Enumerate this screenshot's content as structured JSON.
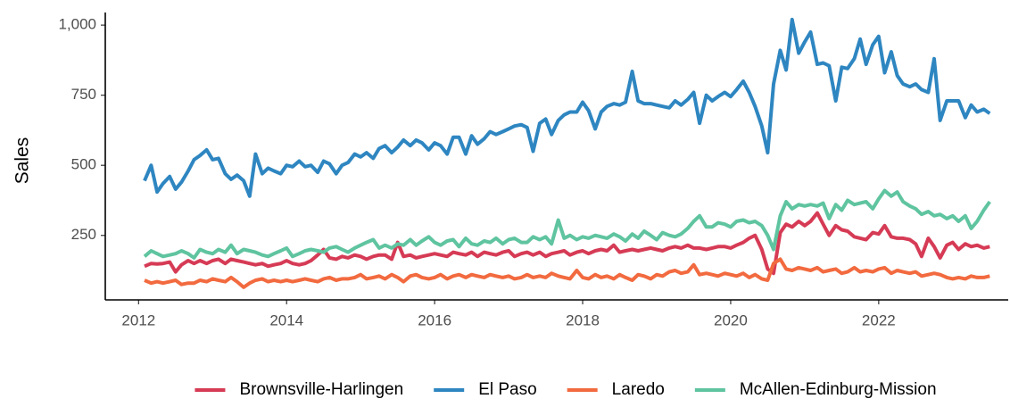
{
  "chart_data": {
    "type": "line",
    "y_label": "Sales",
    "x": [
      2012.08,
      2012.17,
      2012.25,
      2012.33,
      2012.42,
      2012.5,
      2012.58,
      2012.67,
      2012.75,
      2012.83,
      2012.92,
      2013.0,
      2013.08,
      2013.17,
      2013.25,
      2013.33,
      2013.42,
      2013.5,
      2013.58,
      2013.67,
      2013.75,
      2013.83,
      2013.92,
      2014.0,
      2014.08,
      2014.17,
      2014.25,
      2014.33,
      2014.42,
      2014.5,
      2014.58,
      2014.67,
      2014.75,
      2014.83,
      2014.92,
      2015.0,
      2015.08,
      2015.17,
      2015.25,
      2015.33,
      2015.42,
      2015.5,
      2015.58,
      2015.67,
      2015.75,
      2015.83,
      2015.92,
      2016.0,
      2016.08,
      2016.17,
      2016.25,
      2016.33,
      2016.42,
      2016.5,
      2016.58,
      2016.67,
      2016.75,
      2016.83,
      2016.92,
      2017.0,
      2017.08,
      2017.17,
      2017.25,
      2017.33,
      2017.42,
      2017.5,
      2017.58,
      2017.67,
      2017.75,
      2017.83,
      2017.92,
      2018.0,
      2018.08,
      2018.17,
      2018.25,
      2018.33,
      2018.42,
      2018.5,
      2018.58,
      2018.67,
      2018.75,
      2018.83,
      2018.92,
      2019.0,
      2019.08,
      2019.17,
      2019.25,
      2019.33,
      2019.42,
      2019.5,
      2019.58,
      2019.67,
      2019.75,
      2019.83,
      2019.92,
      2020.0,
      2020.08,
      2020.17,
      2020.25,
      2020.33,
      2020.42,
      2020.5,
      2020.58,
      2020.67,
      2020.75,
      2020.83,
      2020.92,
      2021.0,
      2021.08,
      2021.17,
      2021.25,
      2021.33,
      2021.42,
      2021.5,
      2021.58,
      2021.67,
      2021.75,
      2021.83,
      2021.92,
      2022.0,
      2022.08,
      2022.17,
      2022.25,
      2022.33,
      2022.42,
      2022.5,
      2022.58,
      2022.67,
      2022.75,
      2022.83,
      2022.92,
      2023.0,
      2023.08,
      2023.17,
      2023.25,
      2023.33,
      2023.42,
      2023.5
    ],
    "series": [
      {
        "name": "Brownsville-Harlingen",
        "color": "#d63b55",
        "values": [
          140,
          150,
          148,
          150,
          155,
          120,
          145,
          160,
          150,
          160,
          150,
          160,
          165,
          150,
          165,
          160,
          155,
          150,
          145,
          150,
          140,
          145,
          150,
          160,
          150,
          145,
          150,
          160,
          180,
          200,
          170,
          165,
          175,
          170,
          180,
          175,
          165,
          175,
          180,
          180,
          165,
          225,
          175,
          180,
          170,
          175,
          180,
          185,
          180,
          175,
          190,
          185,
          180,
          190,
          175,
          190,
          185,
          180,
          190,
          195,
          175,
          185,
          190,
          180,
          190,
          175,
          185,
          190,
          195,
          180,
          190,
          195,
          185,
          195,
          200,
          195,
          215,
          190,
          195,
          200,
          195,
          200,
          205,
          200,
          195,
          205,
          210,
          205,
          215,
          205,
          205,
          200,
          205,
          210,
          210,
          205,
          215,
          225,
          240,
          250,
          200,
          130,
          115,
          260,
          290,
          280,
          300,
          285,
          300,
          330,
          290,
          250,
          285,
          270,
          265,
          245,
          240,
          235,
          260,
          255,
          285,
          245,
          240,
          240,
          235,
          220,
          175,
          240,
          210,
          170,
          215,
          225,
          200,
          220,
          210,
          215,
          205,
          210
        ]
      },
      {
        "name": "El Paso",
        "color": "#2e86c1",
        "values": [
          445,
          500,
          405,
          435,
          460,
          415,
          440,
          480,
          520,
          535,
          555,
          520,
          525,
          470,
          450,
          465,
          445,
          390,
          540,
          470,
          490,
          480,
          470,
          500,
          495,
          515,
          495,
          500,
          475,
          515,
          505,
          470,
          500,
          510,
          540,
          530,
          545,
          525,
          560,
          570,
          545,
          565,
          590,
          570,
          590,
          580,
          555,
          580,
          570,
          540,
          600,
          600,
          540,
          605,
          575,
          595,
          620,
          610,
          620,
          630,
          640,
          645,
          635,
          550,
          650,
          665,
          610,
          660,
          680,
          690,
          690,
          725,
          695,
          630,
          690,
          710,
          720,
          715,
          725,
          835,
          730,
          720,
          720,
          715,
          710,
          705,
          730,
          715,
          735,
          760,
          650,
          750,
          730,
          745,
          760,
          745,
          770,
          800,
          760,
          710,
          640,
          545,
          790,
          910,
          840,
          1020,
          900,
          940,
          975,
          860,
          865,
          855,
          730,
          850,
          845,
          880,
          950,
          860,
          930,
          960,
          830,
          905,
          820,
          790,
          780,
          790,
          770,
          760,
          880,
          660,
          730,
          730,
          730,
          670,
          715,
          690,
          700,
          685
        ]
      },
      {
        "name": "Laredo",
        "color": "#f26a3f",
        "values": [
          90,
          80,
          85,
          80,
          85,
          90,
          75,
          80,
          80,
          90,
          85,
          95,
          90,
          85,
          100,
          85,
          65,
          80,
          90,
          95,
          85,
          90,
          85,
          90,
          85,
          90,
          95,
          90,
          85,
          95,
          100,
          90,
          95,
          95,
          100,
          110,
          95,
          100,
          105,
          95,
          110,
          100,
          85,
          105,
          110,
          100,
          95,
          100,
          110,
          95,
          105,
          110,
          100,
          110,
          105,
          100,
          110,
          105,
          100,
          105,
          95,
          100,
          110,
          100,
          105,
          100,
          115,
          105,
          100,
          95,
          125,
          100,
          95,
          110,
          100,
          105,
          95,
          110,
          100,
          90,
          110,
          105,
          95,
          110,
          105,
          120,
          125,
          115,
          120,
          145,
          110,
          115,
          110,
          105,
          115,
          110,
          105,
          115,
          100,
          110,
          95,
          90,
          150,
          165,
          130,
          125,
          135,
          130,
          125,
          135,
          120,
          125,
          130,
          115,
          120,
          135,
          120,
          125,
          120,
          130,
          135,
          115,
          125,
          120,
          115,
          120,
          105,
          110,
          115,
          110,
          100,
          95,
          100,
          95,
          105,
          100,
          100,
          105
        ]
      },
      {
        "name": "McAllen-Edinburg-Mission",
        "color": "#5fc4a0",
        "values": [
          175,
          195,
          185,
          175,
          180,
          185,
          195,
          185,
          170,
          200,
          190,
          185,
          200,
          190,
          215,
          185,
          200,
          195,
          190,
          180,
          175,
          185,
          195,
          205,
          175,
          185,
          195,
          200,
          195,
          190,
          205,
          210,
          200,
          190,
          205,
          215,
          225,
          235,
          205,
          215,
          205,
          220,
          215,
          235,
          215,
          230,
          245,
          225,
          215,
          230,
          235,
          210,
          240,
          220,
          215,
          230,
          225,
          240,
          220,
          235,
          240,
          225,
          225,
          245,
          235,
          245,
          220,
          305,
          240,
          250,
          235,
          245,
          240,
          250,
          245,
          240,
          255,
          245,
          230,
          255,
          240,
          265,
          250,
          235,
          260,
          250,
          245,
          255,
          275,
          300,
          320,
          280,
          280,
          295,
          290,
          280,
          300,
          305,
          295,
          300,
          285,
          250,
          200,
          320,
          370,
          345,
          360,
          355,
          360,
          355,
          365,
          310,
          360,
          340,
          375,
          360,
          365,
          370,
          345,
          380,
          410,
          390,
          405,
          370,
          355,
          345,
          325,
          335,
          320,
          325,
          310,
          320,
          300,
          320,
          275,
          300,
          340,
          370
        ]
      }
    ],
    "xlim": [
      2011.55,
      2023.75
    ],
    "xticks": [
      2012,
      2014,
      2016,
      2018,
      2020,
      2022
    ],
    "ylim": [
      20,
      1045
    ],
    "yticks": [
      250,
      500,
      750,
      {
        "value": 1000,
        "label": "1,000"
      }
    ],
    "grid": false,
    "legend": "bottom"
  }
}
